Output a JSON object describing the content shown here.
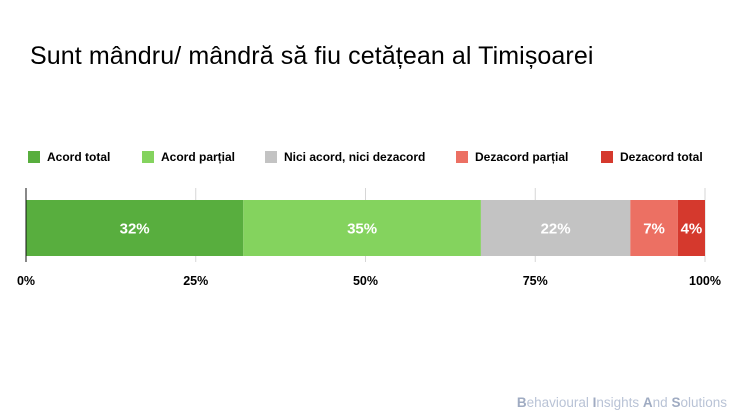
{
  "chart_data": {
    "type": "bar",
    "orientation": "horizontal-stacked-100",
    "title": "Sunt mândru/ mândră să fiu cetățean al Timișoarei",
    "series": [
      {
        "name": "Acord total",
        "value": 32,
        "label": "32%",
        "color": "#58ae3e"
      },
      {
        "name": "Acord parțial",
        "value": 35,
        "label": "35%",
        "color": "#84d35e"
      },
      {
        "name": "Nici acord, nici dezacord",
        "value": 22,
        "label": "22%",
        "color": "#c3c3c3"
      },
      {
        "name": "Dezacord parțial",
        "value": 7,
        "label": "7%",
        "color": "#ec7063"
      },
      {
        "name": "Dezacord total",
        "value": 4,
        "label": "4%",
        "color": "#d5392d"
      }
    ],
    "xlim": [
      0,
      100
    ],
    "xticks": [
      "0%",
      "25%",
      "50%",
      "75%",
      "100%"
    ],
    "grid": "vertical",
    "legend_position": "top"
  },
  "footer": {
    "segments": [
      {
        "cap": "B",
        "rest": "ehavioural "
      },
      {
        "cap": "I",
        "rest": "nsights "
      },
      {
        "cap": "A",
        "rest": "nd "
      },
      {
        "cap": "S",
        "rest": "olutions"
      }
    ]
  }
}
